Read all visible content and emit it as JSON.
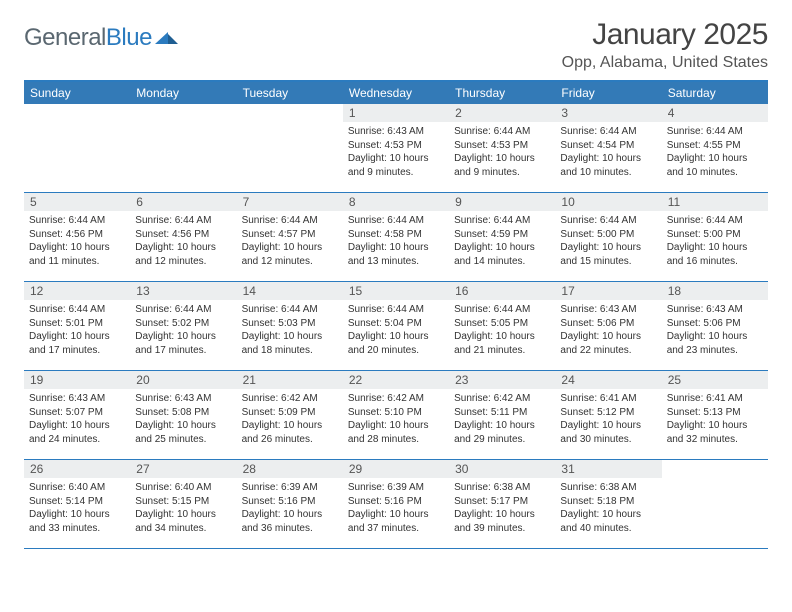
{
  "logo": {
    "text1": "General",
    "text2": "Blue"
  },
  "title": "January 2025",
  "location": "Opp, Alabama, United States",
  "colors": {
    "header_bg": "#337ab7",
    "rule": "#2b7bbf",
    "daynum_bg": "#eceeef",
    "logo_gray": "#5a6770",
    "logo_blue": "#2b7bbf"
  },
  "days_of_week": [
    "Sunday",
    "Monday",
    "Tuesday",
    "Wednesday",
    "Thursday",
    "Friday",
    "Saturday"
  ],
  "weeks": [
    [
      {
        "n": "",
        "sr": "",
        "ss": "",
        "dl": ""
      },
      {
        "n": "",
        "sr": "",
        "ss": "",
        "dl": ""
      },
      {
        "n": "",
        "sr": "",
        "ss": "",
        "dl": ""
      },
      {
        "n": "1",
        "sr": "Sunrise: 6:43 AM",
        "ss": "Sunset: 4:53 PM",
        "dl": "Daylight: 10 hours and 9 minutes."
      },
      {
        "n": "2",
        "sr": "Sunrise: 6:44 AM",
        "ss": "Sunset: 4:53 PM",
        "dl": "Daylight: 10 hours and 9 minutes."
      },
      {
        "n": "3",
        "sr": "Sunrise: 6:44 AM",
        "ss": "Sunset: 4:54 PM",
        "dl": "Daylight: 10 hours and 10 minutes."
      },
      {
        "n": "4",
        "sr": "Sunrise: 6:44 AM",
        "ss": "Sunset: 4:55 PM",
        "dl": "Daylight: 10 hours and 10 minutes."
      }
    ],
    [
      {
        "n": "5",
        "sr": "Sunrise: 6:44 AM",
        "ss": "Sunset: 4:56 PM",
        "dl": "Daylight: 10 hours and 11 minutes."
      },
      {
        "n": "6",
        "sr": "Sunrise: 6:44 AM",
        "ss": "Sunset: 4:56 PM",
        "dl": "Daylight: 10 hours and 12 minutes."
      },
      {
        "n": "7",
        "sr": "Sunrise: 6:44 AM",
        "ss": "Sunset: 4:57 PM",
        "dl": "Daylight: 10 hours and 12 minutes."
      },
      {
        "n": "8",
        "sr": "Sunrise: 6:44 AM",
        "ss": "Sunset: 4:58 PM",
        "dl": "Daylight: 10 hours and 13 minutes."
      },
      {
        "n": "9",
        "sr": "Sunrise: 6:44 AM",
        "ss": "Sunset: 4:59 PM",
        "dl": "Daylight: 10 hours and 14 minutes."
      },
      {
        "n": "10",
        "sr": "Sunrise: 6:44 AM",
        "ss": "Sunset: 5:00 PM",
        "dl": "Daylight: 10 hours and 15 minutes."
      },
      {
        "n": "11",
        "sr": "Sunrise: 6:44 AM",
        "ss": "Sunset: 5:00 PM",
        "dl": "Daylight: 10 hours and 16 minutes."
      }
    ],
    [
      {
        "n": "12",
        "sr": "Sunrise: 6:44 AM",
        "ss": "Sunset: 5:01 PM",
        "dl": "Daylight: 10 hours and 17 minutes."
      },
      {
        "n": "13",
        "sr": "Sunrise: 6:44 AM",
        "ss": "Sunset: 5:02 PM",
        "dl": "Daylight: 10 hours and 17 minutes."
      },
      {
        "n": "14",
        "sr": "Sunrise: 6:44 AM",
        "ss": "Sunset: 5:03 PM",
        "dl": "Daylight: 10 hours and 18 minutes."
      },
      {
        "n": "15",
        "sr": "Sunrise: 6:44 AM",
        "ss": "Sunset: 5:04 PM",
        "dl": "Daylight: 10 hours and 20 minutes."
      },
      {
        "n": "16",
        "sr": "Sunrise: 6:44 AM",
        "ss": "Sunset: 5:05 PM",
        "dl": "Daylight: 10 hours and 21 minutes."
      },
      {
        "n": "17",
        "sr": "Sunrise: 6:43 AM",
        "ss": "Sunset: 5:06 PM",
        "dl": "Daylight: 10 hours and 22 minutes."
      },
      {
        "n": "18",
        "sr": "Sunrise: 6:43 AM",
        "ss": "Sunset: 5:06 PM",
        "dl": "Daylight: 10 hours and 23 minutes."
      }
    ],
    [
      {
        "n": "19",
        "sr": "Sunrise: 6:43 AM",
        "ss": "Sunset: 5:07 PM",
        "dl": "Daylight: 10 hours and 24 minutes."
      },
      {
        "n": "20",
        "sr": "Sunrise: 6:43 AM",
        "ss": "Sunset: 5:08 PM",
        "dl": "Daylight: 10 hours and 25 minutes."
      },
      {
        "n": "21",
        "sr": "Sunrise: 6:42 AM",
        "ss": "Sunset: 5:09 PM",
        "dl": "Daylight: 10 hours and 26 minutes."
      },
      {
        "n": "22",
        "sr": "Sunrise: 6:42 AM",
        "ss": "Sunset: 5:10 PM",
        "dl": "Daylight: 10 hours and 28 minutes."
      },
      {
        "n": "23",
        "sr": "Sunrise: 6:42 AM",
        "ss": "Sunset: 5:11 PM",
        "dl": "Daylight: 10 hours and 29 minutes."
      },
      {
        "n": "24",
        "sr": "Sunrise: 6:41 AM",
        "ss": "Sunset: 5:12 PM",
        "dl": "Daylight: 10 hours and 30 minutes."
      },
      {
        "n": "25",
        "sr": "Sunrise: 6:41 AM",
        "ss": "Sunset: 5:13 PM",
        "dl": "Daylight: 10 hours and 32 minutes."
      }
    ],
    [
      {
        "n": "26",
        "sr": "Sunrise: 6:40 AM",
        "ss": "Sunset: 5:14 PM",
        "dl": "Daylight: 10 hours and 33 minutes."
      },
      {
        "n": "27",
        "sr": "Sunrise: 6:40 AM",
        "ss": "Sunset: 5:15 PM",
        "dl": "Daylight: 10 hours and 34 minutes."
      },
      {
        "n": "28",
        "sr": "Sunrise: 6:39 AM",
        "ss": "Sunset: 5:16 PM",
        "dl": "Daylight: 10 hours and 36 minutes."
      },
      {
        "n": "29",
        "sr": "Sunrise: 6:39 AM",
        "ss": "Sunset: 5:16 PM",
        "dl": "Daylight: 10 hours and 37 minutes."
      },
      {
        "n": "30",
        "sr": "Sunrise: 6:38 AM",
        "ss": "Sunset: 5:17 PM",
        "dl": "Daylight: 10 hours and 39 minutes."
      },
      {
        "n": "31",
        "sr": "Sunrise: 6:38 AM",
        "ss": "Sunset: 5:18 PM",
        "dl": "Daylight: 10 hours and 40 minutes."
      },
      {
        "n": "",
        "sr": "",
        "ss": "",
        "dl": ""
      }
    ]
  ]
}
